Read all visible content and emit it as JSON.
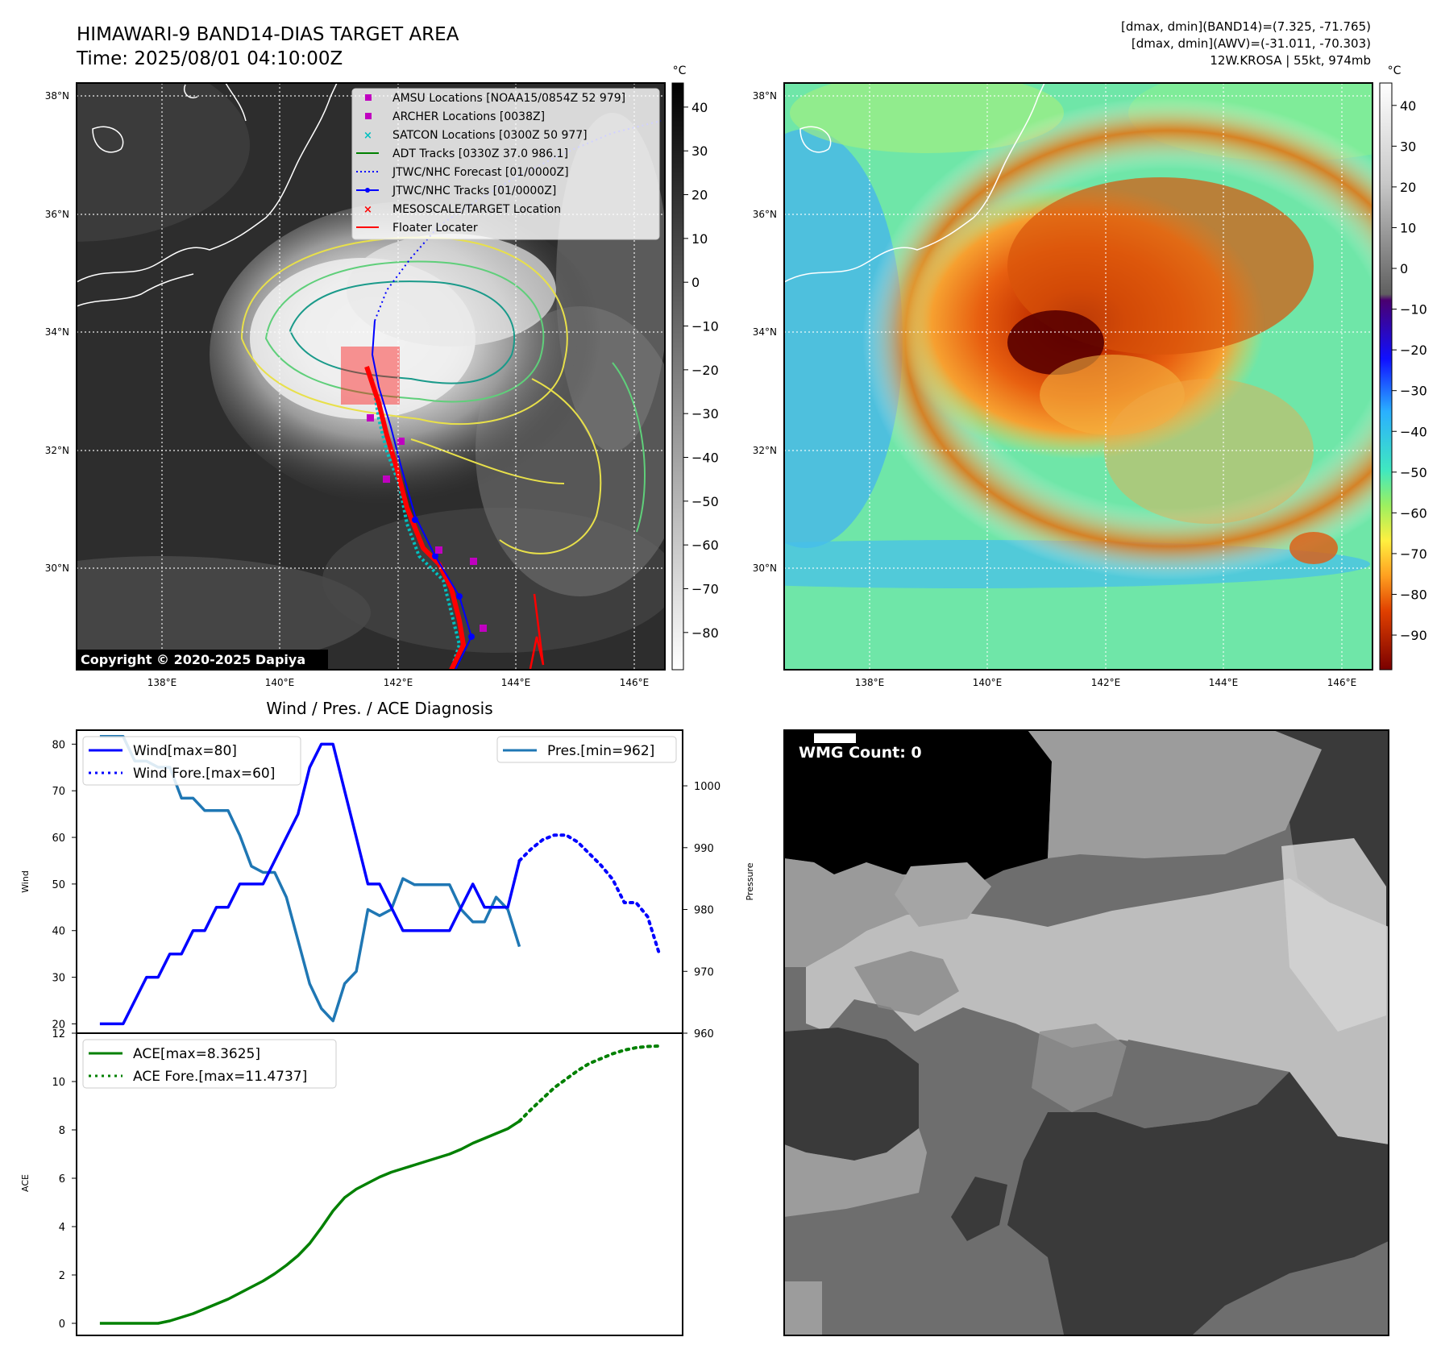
{
  "header": {
    "title_line1": "HIMAWARI-9 BAND14-DIAS TARGET AREA",
    "title_line2": "Time: 2025/08/01 04:10:00Z",
    "info_line1": "[dmax, dmin](BAND14)=(7.325, -71.765)",
    "info_line2": "[dmax, dmin](AWV)=(-31.011, -70.303)",
    "info_line3": "12W.KROSA | 55kt, 974mb"
  },
  "maps": {
    "lat_ticks": [
      "38°N",
      "36°N",
      "34°N",
      "32°N",
      "30°N"
    ],
    "lon_ticks": [
      "138°E",
      "140°E",
      "142°E",
      "144°E",
      "146°E"
    ],
    "copyright": "Copyright © 2020-2025 Dapiya",
    "colors": {
      "ir_cloud": "#ffffff",
      "ir_clear": "#2c2c2c",
      "contour_yellow": "#e8e04a",
      "contour_green": "#5fcf7a",
      "contour_teal": "#1a9a8a",
      "track_red": "#ff0000",
      "track_blue": "#0000ff",
      "cyan": "#00c0c0",
      "magenta": "#c000c0"
    },
    "legend": [
      {
        "label": "AMSU Locations [NOAA15/0854Z 52 979]",
        "marker": "square",
        "color": "#c000c0"
      },
      {
        "label": "ARCHER Locations [0038Z]",
        "marker": "square",
        "color": "#c000c0"
      },
      {
        "label": "SATCON Locations [0300Z 50 977]",
        "marker": "x",
        "color": "#00c0c0"
      },
      {
        "label": "ADT Tracks [0330Z 37.0 986.1]",
        "marker": "line",
        "color": "#008000"
      },
      {
        "label": "JTWC/NHC Forecast [01/0000Z]",
        "marker": "dotted",
        "color": "#0000ff"
      },
      {
        "label": "JTWC/NHC Tracks [01/0000Z]",
        "marker": "line-dot",
        "color": "#0000ff"
      },
      {
        "label": "MESOSCALE/TARGET Location",
        "marker": "x",
        "color": "#ff0000"
      },
      {
        "label": "Floater Locater",
        "marker": "line",
        "color": "#ff0000"
      }
    ]
  },
  "colorbar_ir": {
    "unit": "°C",
    "ticks": [
      "40",
      "30",
      "20",
      "10",
      "0",
      "−10",
      "−20",
      "−30",
      "−40",
      "−50",
      "−60",
      "−70",
      "−80"
    ]
  },
  "colorbar_wv": {
    "unit": "°C",
    "ticks": [
      "40",
      "30",
      "20",
      "10",
      "0",
      "−10",
      "−20",
      "−30",
      "−40",
      "−50",
      "−60",
      "−70",
      "−80",
      "−90"
    ]
  },
  "diagnosis": {
    "title": "Wind / Pres. / ACE Diagnosis",
    "wind_ylabel": "Wind",
    "pres_ylabel": "Pressure",
    "ace_ylabel": "ACE",
    "legend_wind": "Wind[max=80]",
    "legend_wind_fore": "Wind Fore.[max=60]",
    "legend_pres": "Pres.[min=962]",
    "legend_ace": "ACE[max=8.3625]",
    "legend_ace_fore": "ACE Fore.[max=11.4737]"
  },
  "wmg": {
    "label": "WMG Count: 0"
  },
  "chart_data": [
    {
      "type": "line",
      "title": "Wind / Pres. / ACE Diagnosis",
      "ylabel": "Wind",
      "ylim": [
        18,
        83
      ],
      "yticks": [
        20,
        30,
        40,
        50,
        60,
        70,
        80
      ],
      "xlim": [
        -2,
        50
      ],
      "series": [
        {
          "name": "Wind[max=80]",
          "style": "solid",
          "color": "#0000ff",
          "x": [
            0,
            1,
            2,
            3,
            4,
            5,
            6,
            7,
            8,
            9,
            10,
            11,
            12,
            13,
            14,
            15,
            16,
            17,
            18,
            19,
            20,
            21,
            22,
            23,
            24,
            25,
            26,
            27,
            28,
            29,
            30,
            31,
            32,
            33,
            34,
            35,
            36
          ],
          "y": [
            20,
            20,
            20,
            25,
            30,
            30,
            35,
            35,
            40,
            40,
            45,
            45,
            50,
            50,
            50,
            55,
            60,
            65,
            75,
            80,
            80,
            70,
            60,
            50,
            50,
            45,
            40,
            40,
            40,
            40,
            40,
            45,
            50,
            45,
            45,
            45,
            55
          ]
        },
        {
          "name": "Wind Fore.[max=60]",
          "style": "dotted",
          "color": "#0000ff",
          "x": [
            36,
            37,
            38,
            39,
            40,
            41,
            42,
            43,
            44,
            45,
            46,
            47,
            48
          ],
          "y": [
            55,
            57.5,
            59.5,
            60.5,
            60.5,
            59,
            56.5,
            54,
            51,
            46,
            46,
            43,
            35
          ]
        }
      ]
    },
    {
      "type": "line",
      "ylabel": "Pressure",
      "ylim": [
        960,
        1009
      ],
      "yticks": [
        960,
        970,
        980,
        990,
        1000
      ],
      "xlim": [
        -2,
        50
      ],
      "series": [
        {
          "name": "Pres.[min=962]",
          "style": "solid",
          "color": "#1f77b4",
          "x": [
            0,
            1,
            2,
            3,
            4,
            5,
            6,
            7,
            8,
            9,
            10,
            11,
            12,
            13,
            14,
            15,
            16,
            17,
            18,
            19,
            20,
            21,
            22,
            23,
            24,
            25,
            26,
            27,
            28,
            29,
            30,
            31,
            32,
            33,
            34,
            35,
            36
          ],
          "y": [
            1008,
            1008,
            1008,
            1004,
            1004,
            1003,
            1003,
            998,
            998,
            996,
            996,
            996,
            992,
            987,
            986,
            986,
            982,
            975,
            968,
            964,
            962,
            968,
            970,
            980,
            979,
            980,
            985,
            984,
            984,
            984,
            984,
            980,
            978,
            978,
            982,
            980,
            974
          ]
        }
      ]
    },
    {
      "type": "line",
      "ylabel": "ACE",
      "ylim": [
        -0.5,
        12
      ],
      "yticks": [
        0,
        2,
        4,
        6,
        8,
        10,
        12
      ],
      "xlim": [
        -2,
        50
      ],
      "series": [
        {
          "name": "ACE[max=8.3625]",
          "style": "solid",
          "color": "#008000",
          "x": [
            0,
            1,
            2,
            3,
            4,
            5,
            6,
            7,
            8,
            9,
            10,
            11,
            12,
            13,
            14,
            15,
            16,
            17,
            18,
            19,
            20,
            21,
            22,
            23,
            24,
            25,
            26,
            27,
            28,
            29,
            30,
            31,
            32,
            33,
            34,
            35,
            36
          ],
          "y": [
            0,
            0,
            0,
            0,
            0,
            0,
            0.1,
            0.25,
            0.4,
            0.6,
            0.8,
            1.0,
            1.25,
            1.5,
            1.75,
            2.05,
            2.4,
            2.8,
            3.3,
            3.95,
            4.65,
            5.2,
            5.55,
            5.8,
            6.05,
            6.25,
            6.4,
            6.55,
            6.7,
            6.85,
            7.0,
            7.2,
            7.45,
            7.65,
            7.85,
            8.05,
            8.36
          ]
        },
        {
          "name": "ACE Fore.[max=11.4737]",
          "style": "dotted",
          "color": "#008000",
          "x": [
            36,
            37,
            38,
            39,
            40,
            41,
            42,
            43,
            44,
            45,
            46,
            47,
            48
          ],
          "y": [
            8.36,
            8.85,
            9.3,
            9.75,
            10.1,
            10.45,
            10.75,
            10.95,
            11.15,
            11.3,
            11.4,
            11.45,
            11.47
          ]
        }
      ]
    }
  ]
}
